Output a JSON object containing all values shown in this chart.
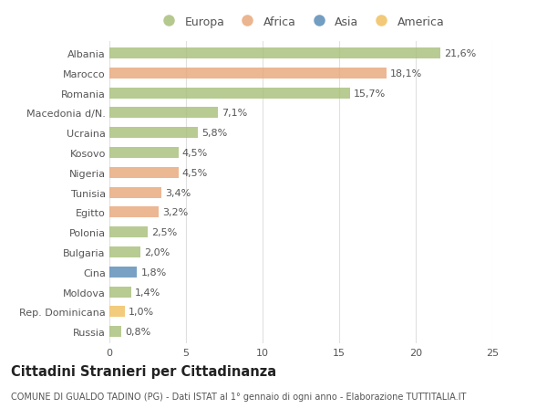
{
  "categories": [
    "Albania",
    "Marocco",
    "Romania",
    "Macedonia d/N.",
    "Ucraina",
    "Kosovo",
    "Nigeria",
    "Tunisia",
    "Egitto",
    "Polonia",
    "Bulgaria",
    "Cina",
    "Moldova",
    "Rep. Dominicana",
    "Russia"
  ],
  "values": [
    21.6,
    18.1,
    15.7,
    7.1,
    5.8,
    4.5,
    4.5,
    3.4,
    3.2,
    2.5,
    2.0,
    1.8,
    1.4,
    1.0,
    0.8
  ],
  "labels": [
    "21,6%",
    "18,1%",
    "15,7%",
    "7,1%",
    "5,8%",
    "4,5%",
    "4,5%",
    "3,4%",
    "3,2%",
    "2,5%",
    "2,0%",
    "1,8%",
    "1,4%",
    "1,0%",
    "0,8%"
  ],
  "continents": [
    "Europa",
    "Africa",
    "Europa",
    "Europa",
    "Europa",
    "Europa",
    "Africa",
    "Africa",
    "Africa",
    "Europa",
    "Europa",
    "Asia",
    "Europa",
    "America",
    "Europa"
  ],
  "continent_colors": {
    "Europa": "#a8c07a",
    "Africa": "#e8a87c",
    "Asia": "#5b8db8",
    "America": "#f0c060"
  },
  "legend_order": [
    "Europa",
    "Africa",
    "Asia",
    "America"
  ],
  "title": "Cittadini Stranieri per Cittadinanza",
  "subtitle": "COMUNE DI GUALDO TADINO (PG) - Dati ISTAT al 1° gennaio di ogni anno - Elaborazione TUTTITALIA.IT",
  "xlim": [
    0,
    25
  ],
  "xticks": [
    0,
    5,
    10,
    15,
    20,
    25
  ],
  "background_color": "#ffffff",
  "grid_color": "#e0e0e0",
  "bar_height": 0.55,
  "label_fontsize": 8,
  "tick_fontsize": 8,
  "title_fontsize": 10.5,
  "subtitle_fontsize": 7
}
